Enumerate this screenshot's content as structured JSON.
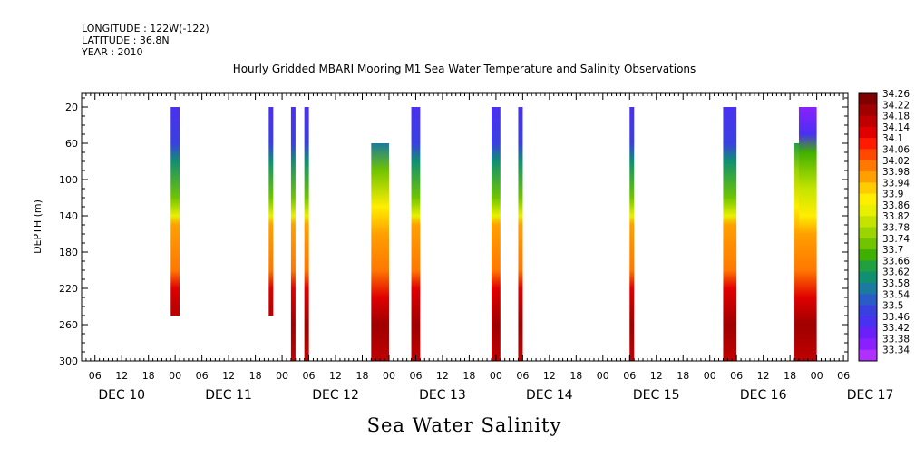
{
  "header": {
    "longitude": "LONGITUDE : 122W(-122)",
    "latitude": "LATITUDE : 36.8N",
    "year": "YEAR : 2010"
  },
  "chart_data": {
    "type": "heatmap",
    "title": "Hourly Gridded MBARI Mooring M1 Sea Water Temperature and Salinity Observations",
    "subtitle": "Sea Water Salinity",
    "xlabel": "",
    "ylabel": "DEPTH (m)",
    "xlim": [
      "2010-12-10T03:00",
      "2010-12-17T07:00"
    ],
    "ylim": [
      300,
      5
    ],
    "y_ticks": [
      20,
      60,
      100,
      140,
      180,
      220,
      260,
      300
    ],
    "x_hour_ticks": [
      "06",
      "12",
      "18",
      "00",
      "06",
      "12",
      "18",
      "00",
      "06",
      "12",
      "18",
      "00",
      "06",
      "12",
      "18",
      "00",
      "06",
      "12",
      "18",
      "00",
      "06",
      "12",
      "18",
      "00",
      "06",
      "12",
      "18",
      "00",
      "06"
    ],
    "x_day_labels": [
      "DEC 10",
      "DEC 11",
      "DEC 12",
      "DEC 13",
      "DEC 14",
      "DEC 15",
      "DEC 16",
      "DEC 17"
    ],
    "colorbar": {
      "levels": [
        "34.26",
        "34.22",
        "34.18",
        "34.14",
        "34.1",
        "34.06",
        "34.02",
        "33.98",
        "33.94",
        "33.9",
        "33.86",
        "33.82",
        "33.78",
        "33.74",
        "33.7",
        "33.66",
        "33.62",
        "33.58",
        "33.54",
        "33.5",
        "33.46",
        "33.42",
        "33.38",
        "33.34"
      ],
      "colors": [
        "#800000",
        "#a00000",
        "#c00000",
        "#e00000",
        "#ff1a00",
        "#ff4800",
        "#ff7800",
        "#ffa000",
        "#ffcc00",
        "#ffee00",
        "#e8f000",
        "#c4e400",
        "#9cd400",
        "#70c400",
        "#40b000",
        "#20a040",
        "#109070",
        "#1a7aa0",
        "#2a5cc8",
        "#3a40e0",
        "#4a30f0",
        "#6a20f8",
        "#8a20ff",
        "#b030ff"
      ]
    },
    "series": [
      {
        "start": "2010-12-10T23:00",
        "end": "2010-12-11T01:00",
        "depth_top": 20,
        "depth_bottom": 250,
        "profile": [
          [
            20,
            33.46
          ],
          [
            60,
            33.5
          ],
          [
            80,
            33.62
          ],
          [
            120,
            33.74
          ],
          [
            140,
            33.88
          ],
          [
            150,
            33.98
          ],
          [
            200,
            34.05
          ],
          [
            220,
            34.14
          ],
          [
            240,
            34.18
          ],
          [
            250,
            34.18
          ]
        ]
      },
      {
        "start": "2010-12-11T21:00",
        "end": "2010-12-11T22:00",
        "depth_top": 20,
        "depth_bottom": 250,
        "profile": [
          [
            20,
            33.46
          ],
          [
            60,
            33.5
          ],
          [
            80,
            33.62
          ],
          [
            120,
            33.74
          ],
          [
            140,
            33.88
          ],
          [
            150,
            33.98
          ],
          [
            200,
            34.05
          ],
          [
            220,
            34.14
          ],
          [
            240,
            34.18
          ],
          [
            250,
            34.18
          ]
        ]
      },
      {
        "start": "2010-12-12T02:00",
        "end": "2010-12-12T03:00",
        "depth_top": 20,
        "depth_bottom": 300,
        "profile": [
          [
            20,
            33.46
          ],
          [
            60,
            33.5
          ],
          [
            80,
            33.62
          ],
          [
            120,
            33.74
          ],
          [
            140,
            33.88
          ],
          [
            150,
            33.98
          ],
          [
            200,
            34.05
          ],
          [
            220,
            34.14
          ],
          [
            260,
            34.22
          ],
          [
            300,
            34.18
          ]
        ]
      },
      {
        "start": "2010-12-12T05:00",
        "end": "2010-12-12T06:00",
        "depth_top": 20,
        "depth_bottom": 300,
        "profile": [
          [
            20,
            33.46
          ],
          [
            60,
            33.5
          ],
          [
            80,
            33.62
          ],
          [
            120,
            33.74
          ],
          [
            140,
            33.88
          ],
          [
            150,
            33.98
          ],
          [
            200,
            34.05
          ],
          [
            220,
            34.14
          ],
          [
            260,
            34.22
          ],
          [
            300,
            34.18
          ]
        ]
      },
      {
        "start": "2010-12-12T20:00",
        "end": "2010-12-13T00:00",
        "depth_top": 60,
        "depth_bottom": 300,
        "profile": [
          [
            60,
            33.6
          ],
          [
            90,
            33.74
          ],
          [
            130,
            33.9
          ],
          [
            160,
            33.98
          ],
          [
            200,
            34.05
          ],
          [
            230,
            34.14
          ],
          [
            260,
            34.22
          ],
          [
            300,
            34.18
          ]
        ]
      },
      {
        "start": "2010-12-13T05:00",
        "end": "2010-12-13T07:00",
        "depth_top": 20,
        "depth_bottom": 300,
        "profile": [
          [
            20,
            33.46
          ],
          [
            60,
            33.5
          ],
          [
            80,
            33.62
          ],
          [
            120,
            33.74
          ],
          [
            140,
            33.88
          ],
          [
            150,
            33.98
          ],
          [
            200,
            34.05
          ],
          [
            220,
            34.14
          ],
          [
            260,
            34.22
          ],
          [
            300,
            34.18
          ]
        ]
      },
      {
        "start": "2010-12-13T23:00",
        "end": "2010-12-14T01:00",
        "depth_top": 20,
        "depth_bottom": 300,
        "profile": [
          [
            20,
            33.46
          ],
          [
            60,
            33.5
          ],
          [
            80,
            33.62
          ],
          [
            120,
            33.74
          ],
          [
            140,
            33.88
          ],
          [
            150,
            33.98
          ],
          [
            200,
            34.05
          ],
          [
            220,
            34.14
          ],
          [
            260,
            34.22
          ],
          [
            300,
            34.18
          ]
        ]
      },
      {
        "start": "2010-12-14T05:00",
        "end": "2010-12-14T06:00",
        "depth_top": 20,
        "depth_bottom": 300,
        "profile": [
          [
            20,
            33.46
          ],
          [
            60,
            33.5
          ],
          [
            80,
            33.62
          ],
          [
            120,
            33.74
          ],
          [
            140,
            33.88
          ],
          [
            150,
            33.98
          ],
          [
            200,
            34.05
          ],
          [
            220,
            34.14
          ],
          [
            260,
            34.22
          ],
          [
            300,
            34.18
          ]
        ]
      },
      {
        "start": "2010-12-15T06:00",
        "end": "2010-12-15T07:00",
        "depth_top": 20,
        "depth_bottom": 300,
        "profile": [
          [
            20,
            33.46
          ],
          [
            60,
            33.5
          ],
          [
            80,
            33.62
          ],
          [
            120,
            33.74
          ],
          [
            140,
            33.88
          ],
          [
            150,
            33.98
          ],
          [
            200,
            34.05
          ],
          [
            220,
            34.14
          ],
          [
            260,
            34.22
          ],
          [
            300,
            34.18
          ]
        ]
      },
      {
        "start": "2010-12-16T03:00",
        "end": "2010-12-16T06:00",
        "depth_top": 20,
        "depth_bottom": 300,
        "profile": [
          [
            20,
            33.46
          ],
          [
            60,
            33.5
          ],
          [
            80,
            33.62
          ],
          [
            120,
            33.74
          ],
          [
            140,
            33.88
          ],
          [
            150,
            33.98
          ],
          [
            200,
            34.05
          ],
          [
            220,
            34.14
          ],
          [
            260,
            34.22
          ],
          [
            300,
            34.18
          ]
        ]
      },
      {
        "start": "2010-12-16T19:00",
        "end": "2010-12-16T20:00",
        "depth_top": 60,
        "depth_bottom": 300,
        "profile": [
          [
            60,
            33.66
          ],
          [
            90,
            33.78
          ],
          [
            130,
            33.9
          ],
          [
            160,
            33.98
          ],
          [
            200,
            34.05
          ],
          [
            230,
            34.14
          ],
          [
            260,
            34.22
          ],
          [
            300,
            34.18
          ]
        ]
      },
      {
        "start": "2010-12-16T20:00",
        "end": "2010-12-17T00:00",
        "depth_top": 20,
        "depth_bottom": 300,
        "profile": [
          [
            20,
            33.4
          ],
          [
            50,
            33.46
          ],
          [
            70,
            33.7
          ],
          [
            110,
            33.82
          ],
          [
            140,
            33.9
          ],
          [
            160,
            33.98
          ],
          [
            200,
            34.05
          ],
          [
            230,
            34.14
          ],
          [
            260,
            34.22
          ],
          [
            300,
            34.18
          ]
        ]
      }
    ],
    "grid": false,
    "legend": "right colorbar"
  }
}
